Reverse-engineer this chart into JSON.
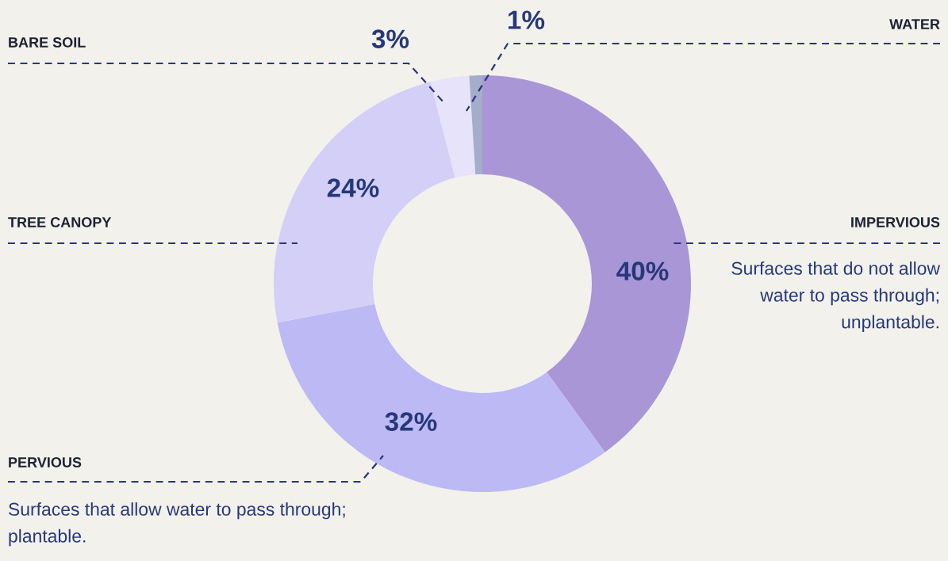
{
  "chart_data": {
    "type": "donut",
    "categories": [
      "IMPERVIOUS",
      "PERVIOUS",
      "TREE CANOPY",
      "BARE SOIL",
      "WATER"
    ],
    "values": [
      40,
      32,
      24,
      3,
      1
    ],
    "value_labels": [
      "40%",
      "32%",
      "24%",
      "3%",
      "1%"
    ],
    "colors": [
      "#a996d6",
      "#bdb9f5",
      "#d3cff7",
      "#e6e3fa",
      "#a5aec8"
    ],
    "annotations": [
      "Surfaces that do not allow water to pass through; unplantable.",
      "Surfaces that allow water to pass through; plantable."
    ],
    "legend": false
  }
}
